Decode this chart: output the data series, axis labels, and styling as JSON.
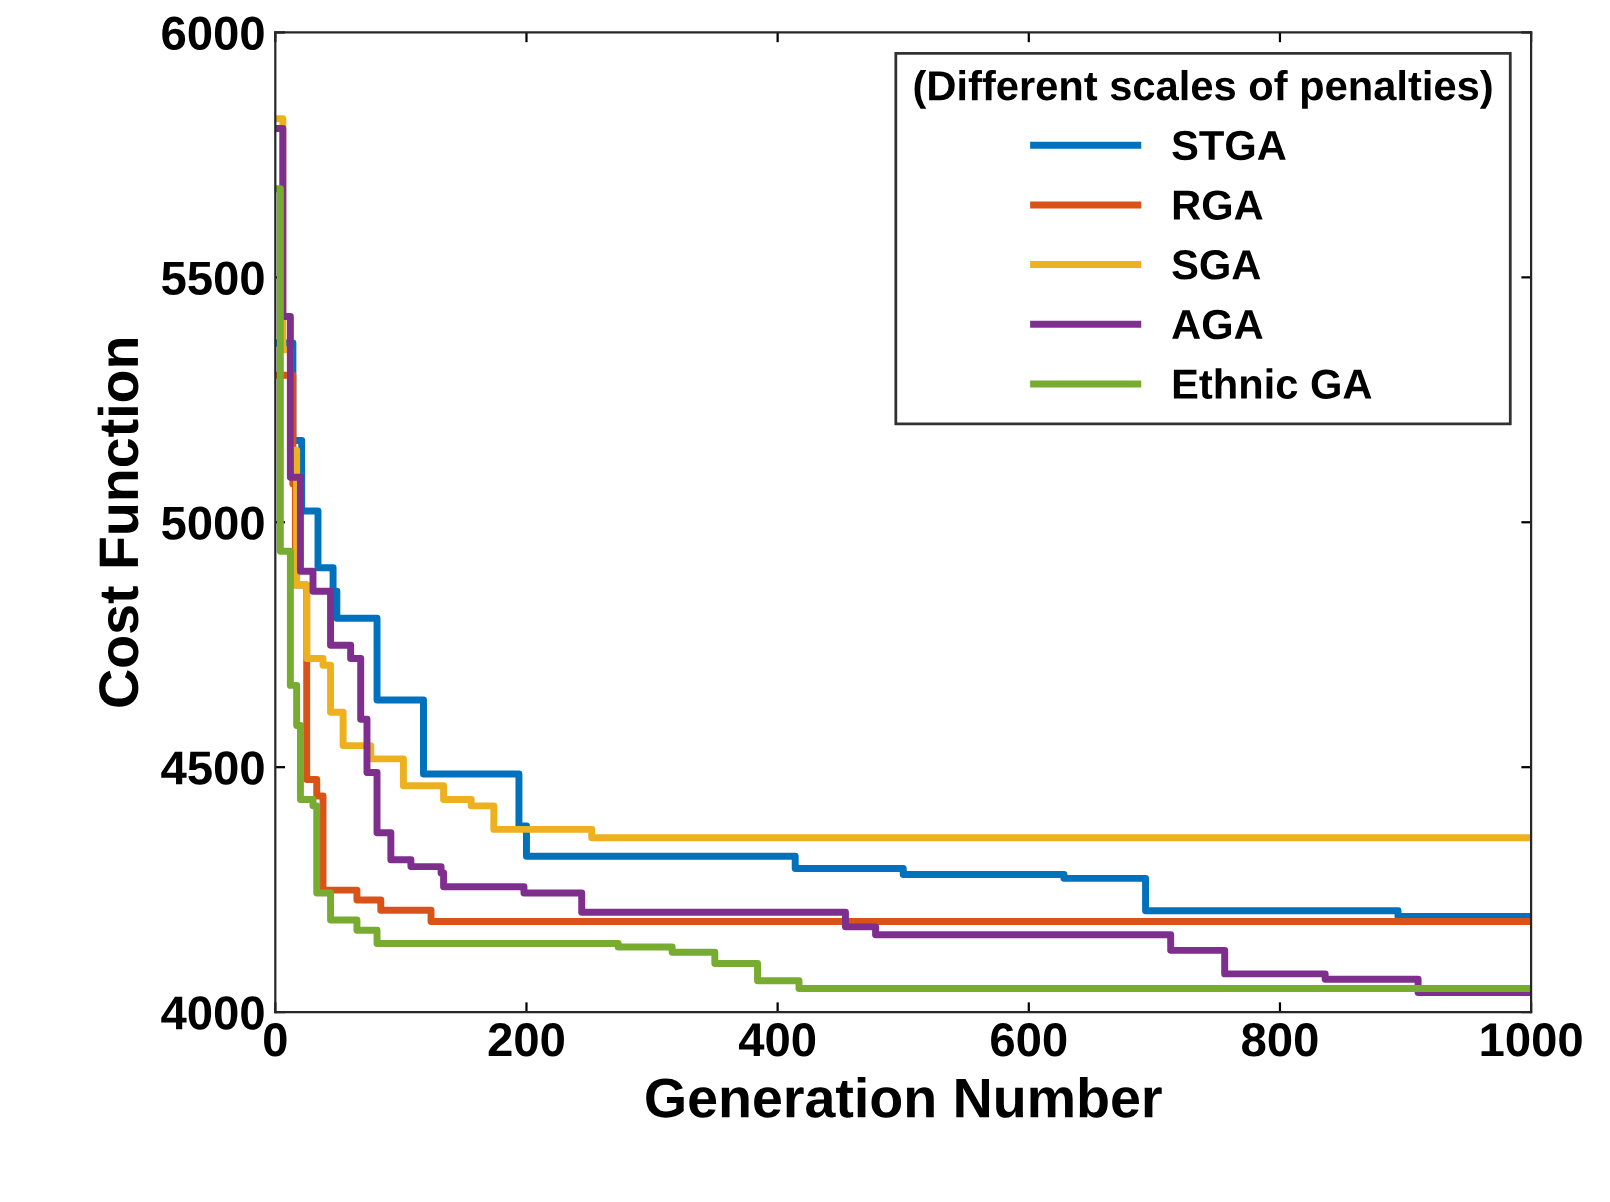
{
  "chart_data": {
    "type": "step",
    "xlabel": "Generation Number",
    "ylabel": "Cost Function",
    "legend_title": "(Different scales of penalties)",
    "legend": "top right",
    "grid": false,
    "xlim": [
      0,
      1000
    ],
    "ylim": [
      4000,
      6000
    ],
    "xticks": [
      0,
      200,
      400,
      600,
      800,
      1000
    ],
    "yticks": [
      4000,
      4500,
      5000,
      5500,
      6000
    ],
    "series": [
      {
        "name": "STGA",
        "color": "#0072bd",
        "x": [
          0,
          14,
          21,
          34,
          46,
          49,
          81,
          118,
          194,
          200,
          414,
          500,
          628,
          693,
          894,
          1000
        ],
        "values": [
          5366,
          5167,
          5023,
          4907,
          4859,
          4804,
          4637,
          4486,
          4380,
          4318,
          4293,
          4281,
          4273,
          4207,
          4195,
          4195
        ]
      },
      {
        "name": "RGA",
        "color": "#d95319",
        "x": [
          0,
          14,
          16,
          25,
          33,
          38,
          65,
          84,
          124,
          1000
        ],
        "values": [
          5300,
          5078,
          4872,
          4475,
          4441,
          4249,
          4229,
          4208,
          4185,
          4185
        ]
      },
      {
        "name": "SGA",
        "color": "#edb120",
        "x": [
          0,
          6,
          12,
          17,
          25,
          38,
          44,
          54,
          76,
          102,
          134,
          156,
          174,
          252,
          1000
        ],
        "values": [
          5824,
          5352,
          5147,
          4872,
          4722,
          4708,
          4612,
          4544,
          4517,
          4462,
          4434,
          4421,
          4373,
          4356,
          4356
        ]
      },
      {
        "name": "AGA",
        "color": "#7e2f8e",
        "x": [
          0,
          6,
          12,
          20,
          30,
          44,
          60,
          68,
          73,
          81,
          92,
          108,
          132,
          134,
          198,
          244,
          454,
          478,
          713,
          729,
          756,
          836,
          910,
          1000
        ],
        "values": [
          5804,
          5420,
          5092,
          4900,
          4859,
          4749,
          4722,
          4598,
          4489,
          4366,
          4311,
          4297,
          4284,
          4256,
          4243,
          4204,
          4174,
          4158,
          4126,
          4126,
          4078,
          4067,
          4040,
          4040
        ]
      },
      {
        "name": "Ethnic GA",
        "color": "#77ac30",
        "x": [
          0,
          4,
          12,
          17,
          20,
          30,
          33,
          44,
          65,
          81,
          273,
          316,
          350,
          384,
          417,
          1000
        ],
        "values": [
          5681,
          4941,
          4667,
          4585,
          4434,
          4421,
          4243,
          4188,
          4167,
          4140,
          4133,
          4122,
          4099,
          4064,
          4048,
          4048
        ]
      }
    ]
  }
}
